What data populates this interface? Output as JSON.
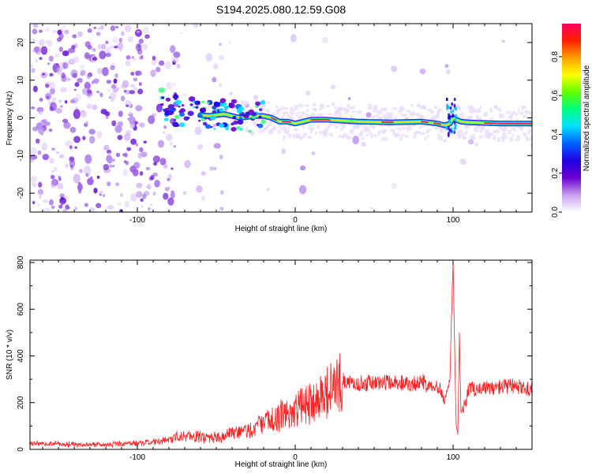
{
  "title": "S194.2025.080.12.59.G08",
  "chart_data": [
    {
      "type": "heatmap",
      "title": "S194.2025.080.12.59.G08",
      "xlabel": "Height of straight line (km)",
      "ylabel": "Frequency (Hz)",
      "xlim": [
        -168,
        150
      ],
      "ylim": [
        -25,
        25
      ],
      "x_ticks": [
        -100,
        0,
        100
      ],
      "y_ticks": [
        -20,
        -10,
        0,
        10,
        20
      ],
      "colorbar": {
        "label": "Normalized spectral amplitude",
        "range": [
          0,
          0.97
        ],
        "ticks": [
          0.0,
          0.2,
          0.4,
          0.6,
          0.8
        ],
        "tick_labels": [
          "0.0",
          "0.2",
          "0.4",
          "0.6",
          "0.8"
        ],
        "colors": [
          "#ffffff",
          "#c8a0f0",
          "#6a00d0",
          "#2000e0",
          "#0060ff",
          "#00e0ff",
          "#00ff80",
          "#60ff00",
          "#ffff00",
          "#ffa000",
          "#ff2000",
          "#ff0060"
        ]
      },
      "signal_track": {
        "description_freq_hz_vs_height_km": true,
        "x": [
          -85,
          -75,
          -65,
          -55,
          -45,
          -35,
          -25,
          -20,
          -15,
          -10,
          -5,
          0,
          5,
          10,
          20,
          40,
          60,
          80,
          90,
          95,
          98,
          100,
          102,
          105,
          110,
          130,
          150
        ],
        "y": [
          4,
          2,
          1,
          0.5,
          1,
          0,
          0.5,
          0.5,
          0,
          -1,
          -1,
          -1.5,
          -1,
          -0.5,
          -0.5,
          -1,
          -1.2,
          -1,
          -1.5,
          -2,
          -1.5,
          0,
          -0.5,
          -1,
          -1.2,
          -1.5,
          -1.5
        ]
      }
    },
    {
      "type": "line",
      "xlabel": "Height of straight line (km)",
      "ylabel": "SNR (10 * v/v)",
      "xlim": [
        -168,
        150
      ],
      "ylim": [
        0,
        810
      ],
      "x_ticks": [
        -100,
        0,
        100
      ],
      "y_ticks": [
        0,
        200,
        400,
        600,
        800
      ],
      "color": "#ff2020",
      "series": [
        {
          "name": "SNR",
          "x": [
            -168,
            -140,
            -110,
            -90,
            -80,
            -75,
            -70,
            -60,
            -50,
            -40,
            -30,
            -20,
            -10,
            0,
            10,
            20,
            30,
            40,
            60,
            80,
            90,
            95,
            98,
            100,
            101,
            102,
            103,
            104,
            105,
            108,
            110,
            120,
            130,
            140,
            150
          ],
          "y": [
            25,
            20,
            22,
            30,
            40,
            55,
            60,
            55,
            50,
            65,
            80,
            110,
            140,
            170,
            205,
            245,
            290,
            280,
            285,
            285,
            270,
            220,
            300,
            810,
            420,
            100,
            60,
            480,
            160,
            200,
            260,
            260,
            265,
            270,
            250
          ]
        }
      ]
    }
  ]
}
